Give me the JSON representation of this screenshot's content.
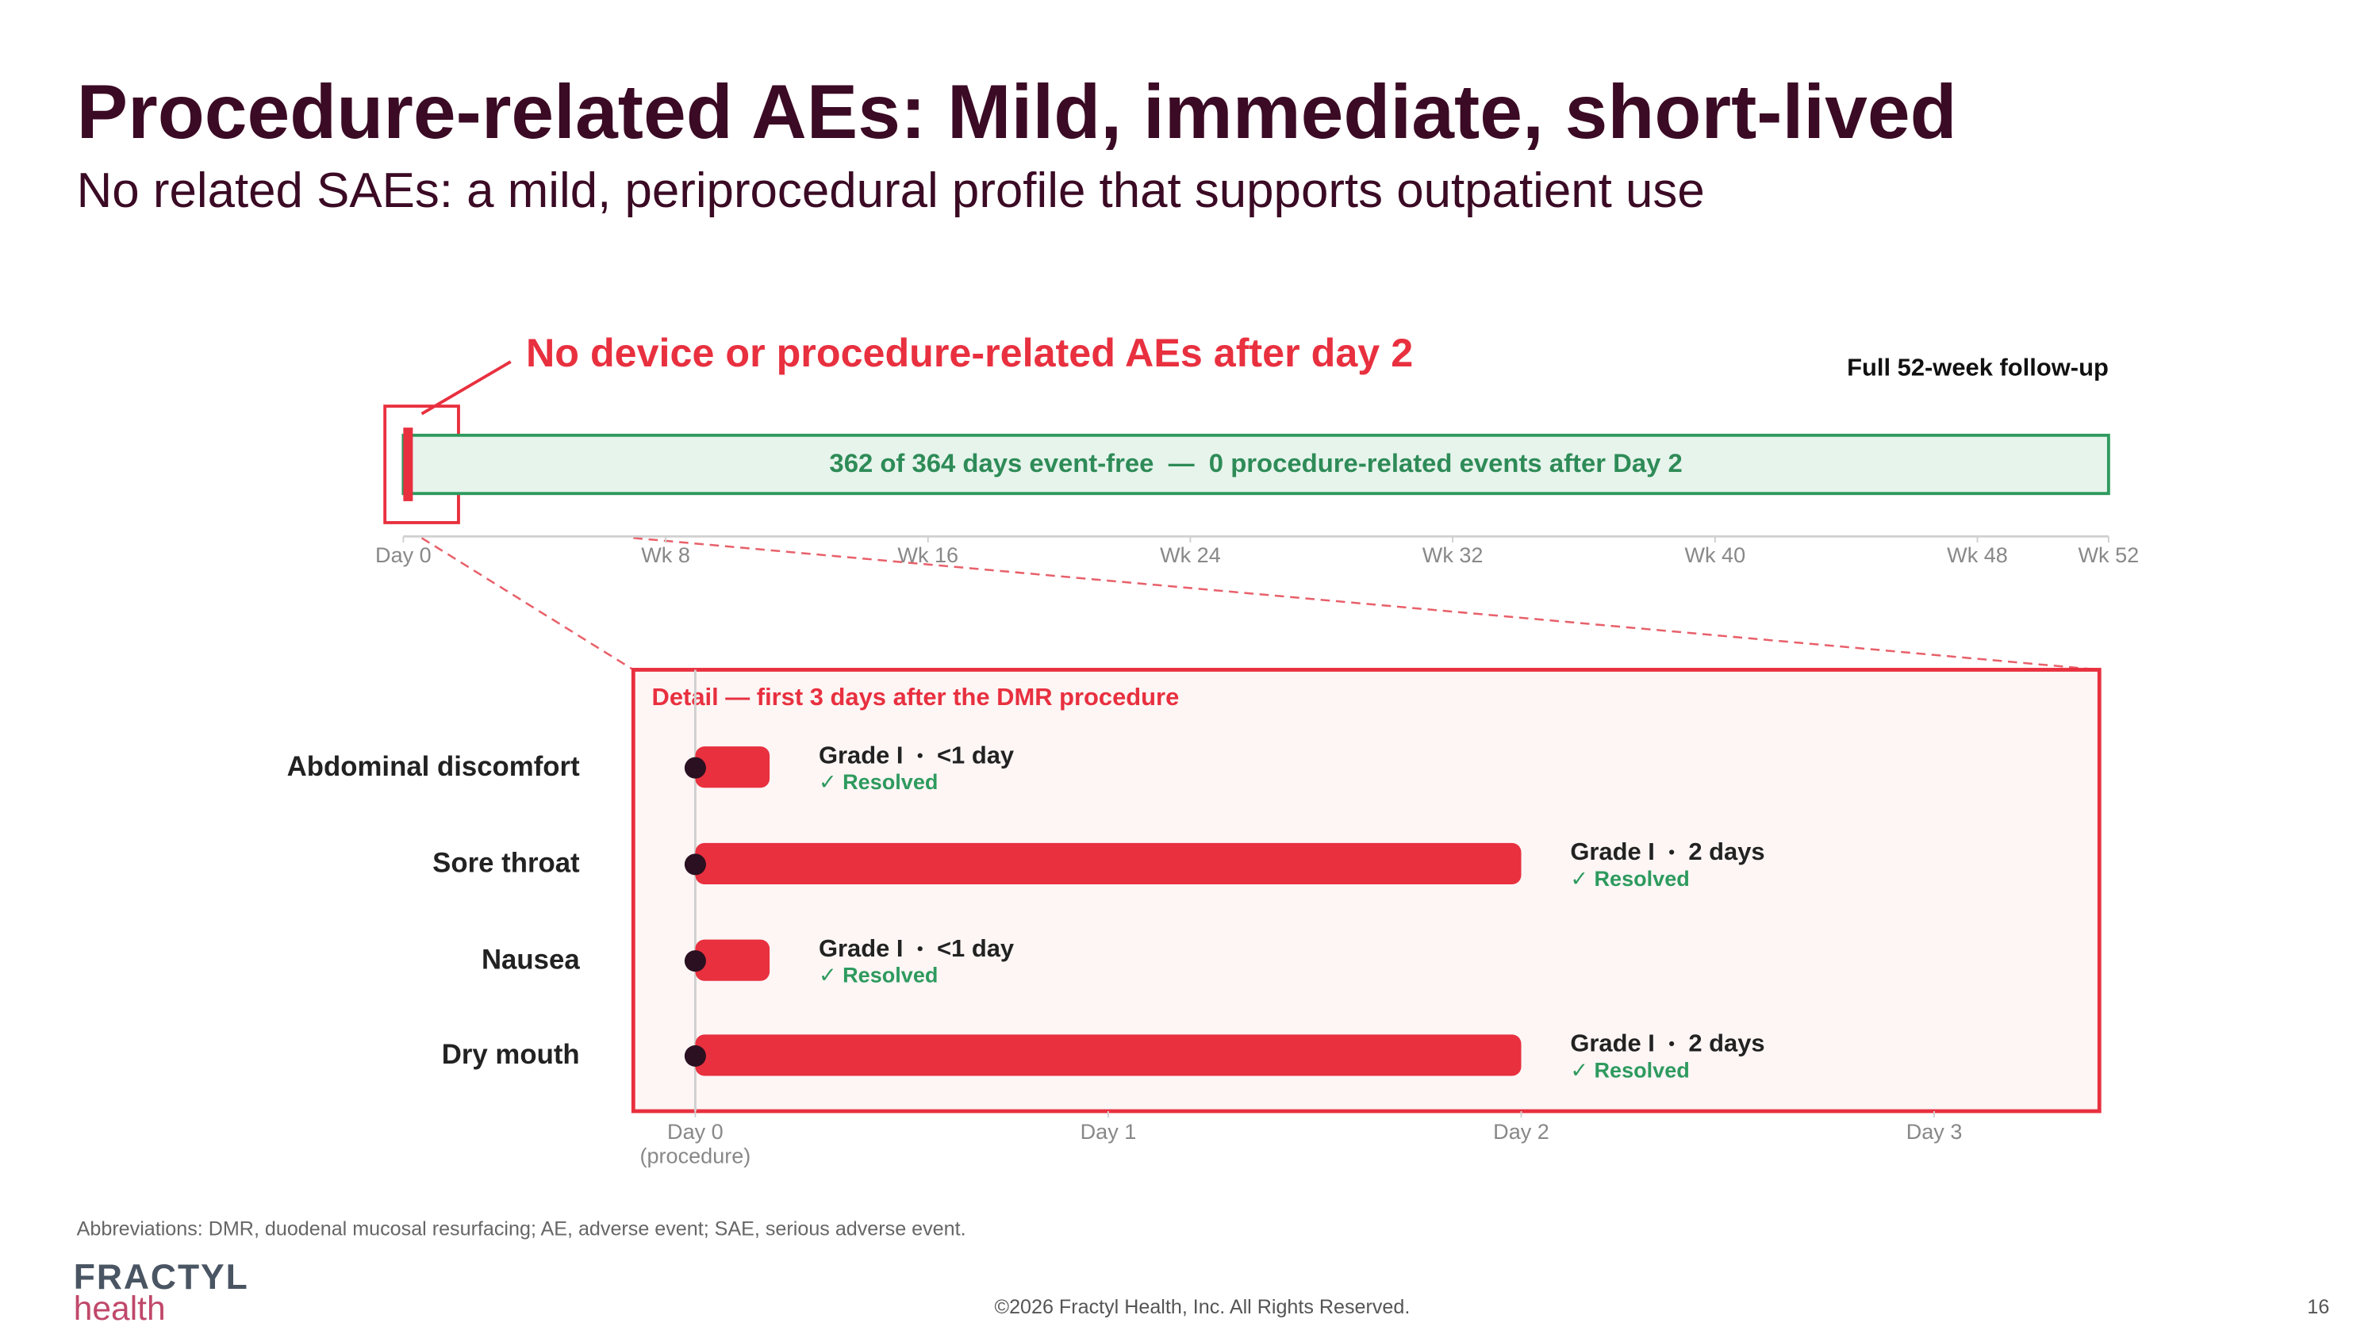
{
  "slide": {
    "title": "Procedure-related AEs: Mild, immediate, short-lived",
    "subtitle": "No related SAEs: a mild, periprocedural profile that supports outpatient use",
    "footnote": "Abbreviations: DMR, duodenal mucosal resurfacing; AE, adverse event; SAE, serious adverse event.",
    "logo_top": "FRACTYL",
    "logo_bottom": "health",
    "copyright": "©2026 Fractyl Health, Inc. All Rights Reserved.",
    "page_number": "16"
  },
  "chart_data": [
    {
      "type": "timeline",
      "annotation": "No device or procedure-related AEs after day 2",
      "subtitle": "Full 52-week follow-up",
      "xlim": [
        0,
        52
      ],
      "xticks": [
        {
          "value": 0,
          "label": "Day 0"
        },
        {
          "value": 8,
          "label": "Wk 8"
        },
        {
          "value": 16,
          "label": "Wk 16"
        },
        {
          "value": 24,
          "label": "Wk 24"
        },
        {
          "value": 32,
          "label": "Wk 32"
        },
        {
          "value": 40,
          "label": "Wk 40"
        },
        {
          "value": 48,
          "label": "Wk 48"
        },
        {
          "value": 52,
          "label": "Wk 52"
        }
      ],
      "spans": [
        {
          "start": 0,
          "end": 52,
          "color": "#e6f4ec",
          "label": "362 of 364 days event-free  —  0 procedure-related events after Day 2"
        },
        {
          "start": 0,
          "end": 0.29,
          "color": "#e8303f"
        }
      ]
    },
    {
      "type": "gantt",
      "title": "Detail — first 3 days after the DMR procedure",
      "categories": [
        "Abdominal discomfort",
        "Sore throat",
        "Nausea",
        "Dry mouth"
      ],
      "starts": [
        0,
        0,
        0,
        0
      ],
      "values": [
        0.18,
        2,
        0.18,
        2
      ],
      "value_labels": [
        "<1 day",
        "2 days",
        "<1 day",
        "2 days"
      ],
      "grades": [
        "Grade I",
        "Grade I",
        "Grade I",
        "Grade I"
      ],
      "status": [
        "✓ Resolved",
        "✓ Resolved",
        "✓ Resolved",
        "✓ Resolved"
      ],
      "color": "#e8303f",
      "xlim": [
        -0.15,
        3.4
      ],
      "xticks": [
        {
          "value": 0,
          "label": "Day 0"
        },
        {
          "value": 1,
          "label": "Day 1"
        },
        {
          "value": 2,
          "label": "Day 2"
        },
        {
          "value": 3,
          "label": "Day 3"
        }
      ],
      "xtick_note": "(procedure)"
    }
  ]
}
